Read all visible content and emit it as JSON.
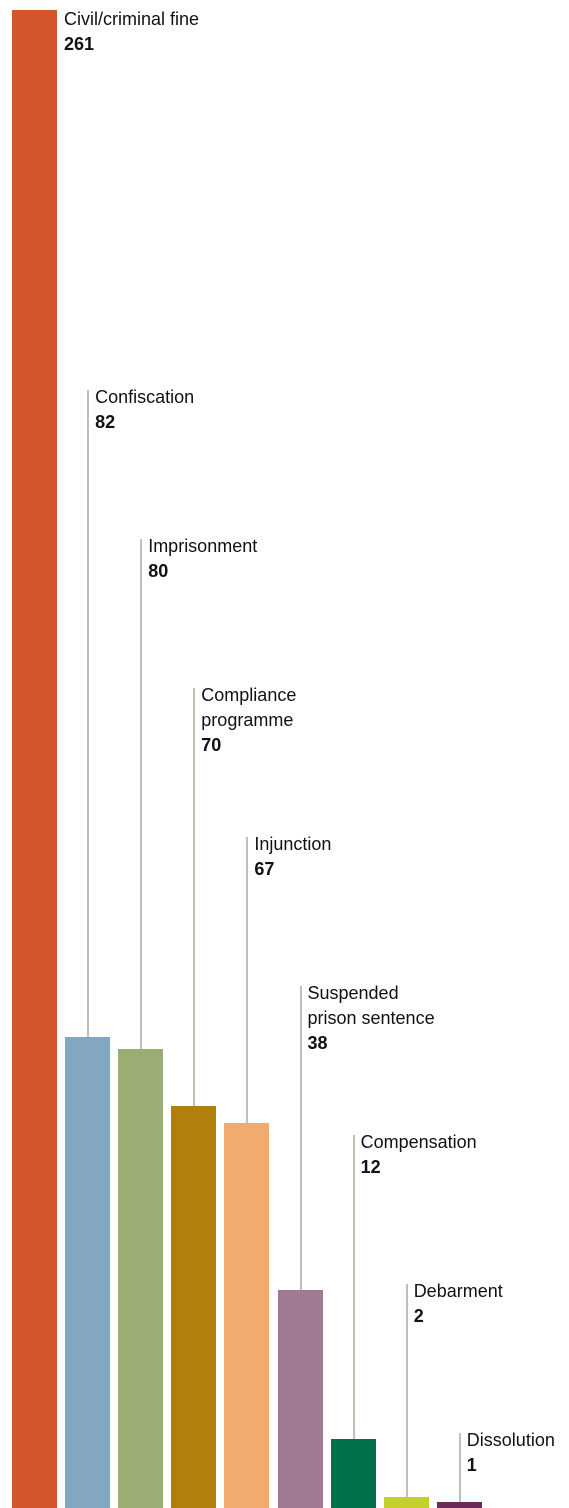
{
  "chart_data": {
    "type": "bar",
    "categories": [
      "Civil/criminal fine",
      "Confiscation",
      "Imprisonment",
      "Compliance programme",
      "Injunction",
      "Suspended prison sentence",
      "Compensation",
      "Debarment",
      "Dissolution"
    ],
    "values": [
      261,
      82,
      80,
      70,
      67,
      38,
      12,
      2,
      1
    ],
    "colors": [
      "#d4572b",
      "#84a7c1",
      "#9aad73",
      "#b37f0c",
      "#f2ab6e",
      "#a07a92",
      "#00704a",
      "#c5d12a",
      "#6b2a5a"
    ]
  }
}
